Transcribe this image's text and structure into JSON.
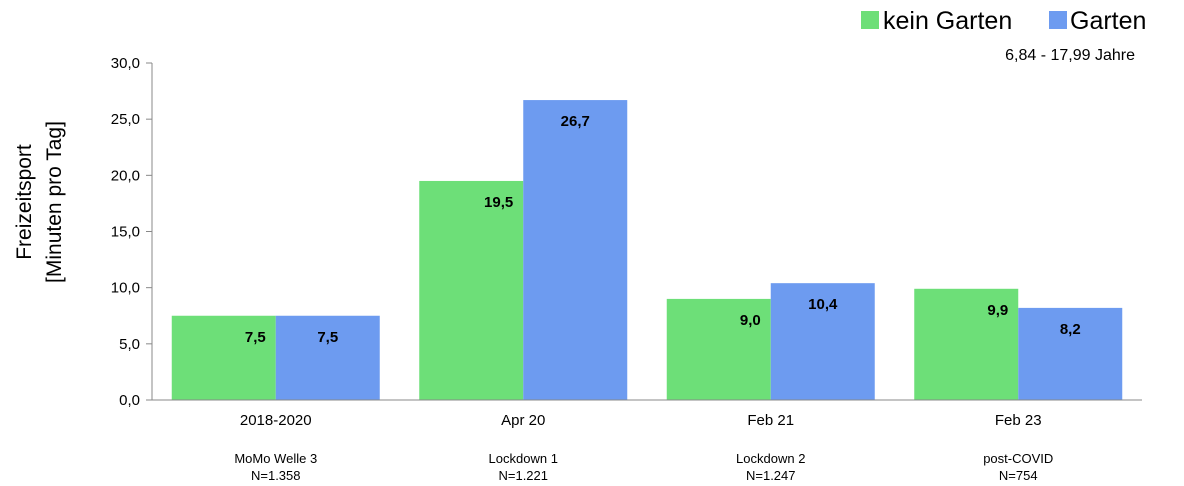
{
  "chart_data": {
    "type": "bar",
    "categories": [
      "2018-2020",
      "Apr 20",
      "Feb 21",
      "Feb 23"
    ],
    "subcategories": [
      [
        "MoMo Welle 3",
        "N=1.358"
      ],
      [
        "Lockdown 1",
        "N=1.221"
      ],
      [
        "Lockdown 2",
        "N=1.247"
      ],
      [
        "post-COVID",
        "N=754"
      ]
    ],
    "series": [
      {
        "name": "kein Garten",
        "color": "#6ddf78",
        "values": [
          7.5,
          19.5,
          9.0,
          9.9
        ],
        "labels": [
          "7,5",
          "19,5",
          "9,0",
          "9,9"
        ]
      },
      {
        "name": "Garten",
        "color": "#6d9bf0",
        "values": [
          7.5,
          26.7,
          10.4,
          8.2
        ],
        "labels": [
          "7,5",
          "26,7",
          "10,4",
          "8,2"
        ]
      }
    ],
    "ylim": [
      0,
      30
    ],
    "yticks": [
      0,
      5,
      10,
      15,
      20,
      25,
      30
    ],
    "ytick_labels": [
      "0,0",
      "5,0",
      "10,0",
      "15,0",
      "20,0",
      "25,0",
      "30,0"
    ],
    "ylabel_lines": [
      "Freizeitsport",
      "[Minuten pro Tag]"
    ],
    "note": "6,84 - 17,99 Jahre",
    "legend_position": "top-right",
    "grid": false
  }
}
